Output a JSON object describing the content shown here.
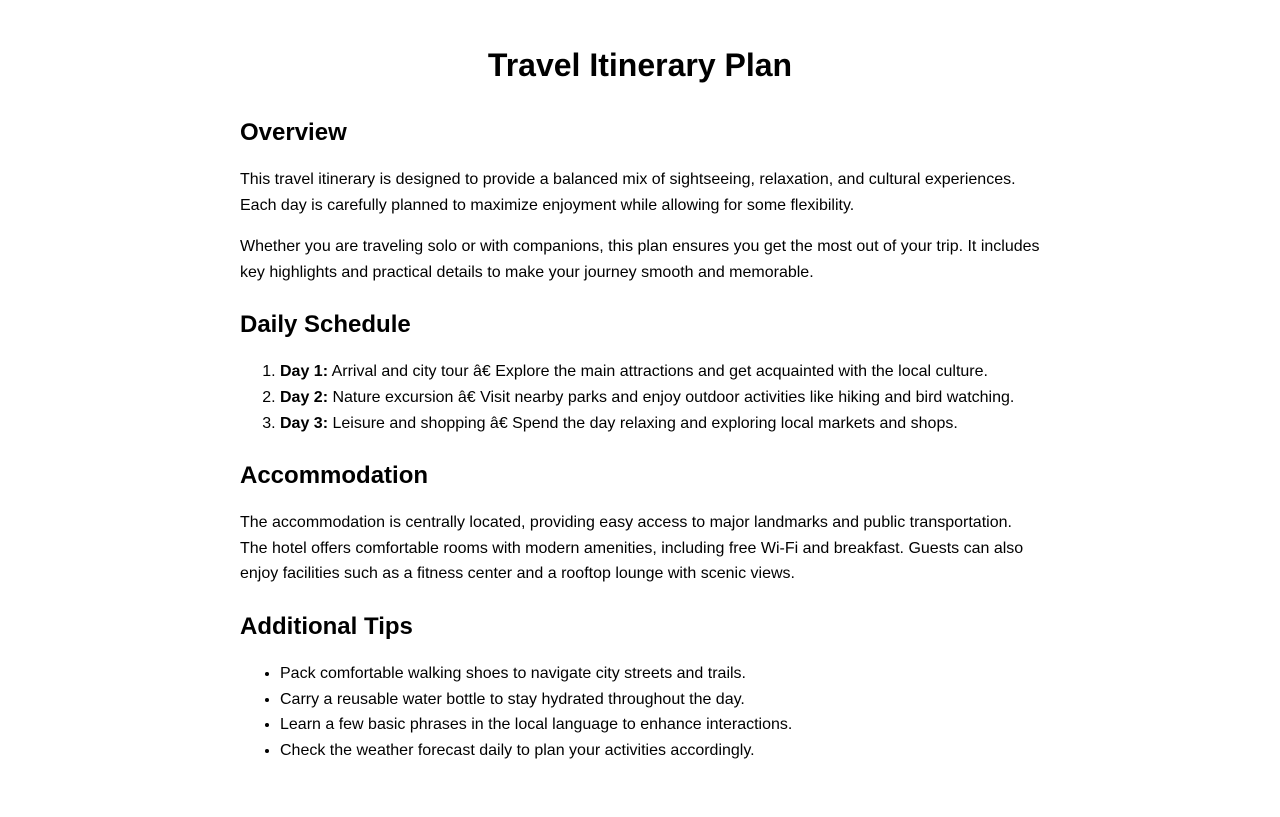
{
  "title": "Travel Itinerary Plan",
  "overview": {
    "heading": "Overview",
    "paragraphs": [
      "This travel itinerary is designed to provide a balanced mix of sightseeing, relaxation, and cultural experiences. Each day is carefully planned to maximize enjoyment while allowing for some flexibility.",
      "Whether you are traveling solo or with companions, this plan ensures you get the most out of your trip. It includes key highlights and practical details to make your journey smooth and memorable."
    ]
  },
  "schedule": {
    "heading": "Daily Schedule",
    "items": [
      {
        "label": "Day 1:",
        "text": " Arrival and city tour â€ Explore the main attractions and get acquainted with the local culture."
      },
      {
        "label": "Day 2:",
        "text": " Nature excursion â€ Visit nearby parks and enjoy outdoor activities like hiking and bird watching."
      },
      {
        "label": "Day 3:",
        "text": " Leisure and shopping â€ Spend the day relaxing and exploring local markets and shops."
      }
    ]
  },
  "accommodation": {
    "heading": "Accommodation",
    "paragraph": "The accommodation is centrally located, providing easy access to major landmarks and public transportation. The hotel offers comfortable rooms with modern amenities, including free Wi-Fi and breakfast. Guests can also enjoy facilities such as a fitness center and a rooftop lounge with scenic views."
  },
  "tips": {
    "heading": "Additional Tips",
    "items": [
      "Pack comfortable walking shoes to navigate city streets and trails.",
      "Carry a reusable water bottle to stay hydrated throughout the day.",
      "Learn a few basic phrases in the local language to enhance interactions.",
      "Check the weather forecast daily to plan your activities accordingly."
    ]
  }
}
